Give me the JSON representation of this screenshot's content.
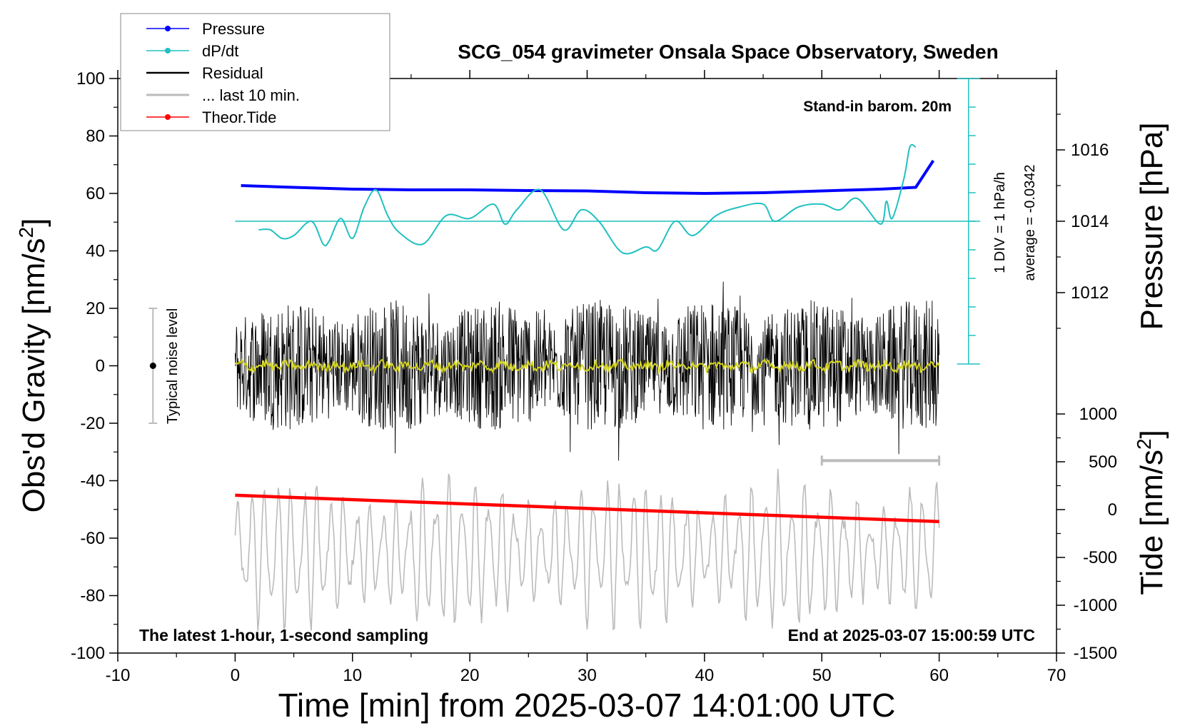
{
  "chart_data": {
    "type": "line",
    "title": "SCG_054 gravimeter Onsala Space Observatory, Sweden",
    "xlabel": "Time [min] from 2025-03-07 14:01:00 UTC",
    "ylabel_left": "Obs'd Gravity [nm/s",
    "ylabel_left_sup": "2",
    "ylabel_left_close": "]",
    "ylabel_right_top": "Pressure [hPa]",
    "ylabel_right_bottom": "Tide [nm/s",
    "ylabel_right_bottom_sup": "2",
    "ylabel_right_bottom_close": "]",
    "xlim": [
      -10,
      70
    ],
    "ylim_left": [
      -100,
      100
    ],
    "ylim_pressure": [
      1010,
      1018
    ],
    "ylim_tide": [
      -1500,
      1000
    ],
    "x_ticks": [
      "-10",
      "0",
      "10",
      "20",
      "30",
      "40",
      "50",
      "60",
      "70"
    ],
    "y_ticks_left": [
      "-100",
      "-80",
      "-60",
      "-40",
      "-20",
      "0",
      "20",
      "40",
      "60",
      "80",
      "100"
    ],
    "pressure_ticks": [
      "1012",
      "1014",
      "1016"
    ],
    "tide_ticks": [
      "-1500",
      "-1000",
      "-500",
      "0",
      "500",
      "1000"
    ],
    "legend": [
      {
        "label": "Pressure",
        "color": "#0000ff",
        "marker": true
      },
      {
        "label": "dP/dt",
        "color": "#20c0c0",
        "marker": true
      },
      {
        "label": "Residual",
        "color": "#000000",
        "marker": false
      },
      {
        "label": "... last 10 min.",
        "color": "#bbbbbb",
        "marker": false
      },
      {
        "label": "Theor.Tide",
        "color": "#ff0000",
        "marker": true
      }
    ],
    "legend_position": "top-left",
    "annotations": {
      "barometer": "Stand-in barom. 20m",
      "div_scale": "1 DIV = 1 hPa/h",
      "average": "average = -0.0342",
      "noise": "Typical noise level",
      "latest": "The latest 1-hour, 1-second sampling",
      "end_time": "End at 2025-03-07 15:00:59 UTC"
    },
    "series": [
      {
        "name": "Pressure",
        "unit": "hPa",
        "color": "#0000ff",
        "x": [
          0.5,
          5,
          10,
          15,
          20,
          25,
          30,
          35,
          40,
          45,
          50,
          55,
          58,
          59.5
        ],
        "values": [
          1015.0,
          1014.95,
          1014.9,
          1014.88,
          1014.88,
          1014.86,
          1014.85,
          1014.8,
          1014.78,
          1014.8,
          1014.85,
          1014.9,
          1014.95,
          1015.7
        ]
      },
      {
        "name": "dP/dt",
        "unit": "hPa/h",
        "color": "#20c0c0",
        "baseline_hPa": 1014,
        "x": [
          2,
          3,
          4,
          5,
          6.5,
          7.5,
          8,
          9,
          10,
          11,
          12,
          13,
          14,
          16,
          18,
          20,
          22,
          23,
          24,
          26,
          28,
          29.5,
          31,
          33,
          35,
          36,
          37.5,
          39,
          41,
          43,
          45,
          46,
          48,
          50,
          51.5,
          53,
          55,
          55.5,
          56,
          57,
          57.5,
          58
        ],
        "values": [
          -0.3,
          -0.3,
          -0.6,
          -0.5,
          0.0,
          -0.8,
          -0.7,
          0.1,
          -0.6,
          0.5,
          1.1,
          0.2,
          -0.4,
          -0.8,
          0.2,
          0.1,
          0.6,
          -0.1,
          0.4,
          1.1,
          -0.3,
          0.4,
          0.0,
          -1.1,
          -0.9,
          -1.0,
          0.0,
          -0.5,
          0.2,
          0.5,
          0.6,
          0.0,
          0.5,
          0.6,
          0.4,
          0.8,
          -0.1,
          0.7,
          0.1,
          1.5,
          2.6,
          2.6
        ]
      },
      {
        "name": "Residual",
        "unit": "nm/s2",
        "color": "#000000",
        "x": [
          0,
          60
        ],
        "typical_range": [
          -30,
          30
        ],
        "peak_range": [
          -40,
          40
        ],
        "mean": 0
      },
      {
        "name": "... last 10 min.",
        "unit": "nm/s2",
        "color": "#bbbbbb",
        "x": [
          0,
          60
        ],
        "center": -65,
        "typical_range": [
          -90,
          -35
        ],
        "peak_range": [
          -95,
          -30
        ]
      },
      {
        "name": "Theor.Tide",
        "unit": "nm/s2",
        "color": "#ff0000",
        "x": [
          0,
          60
        ],
        "values": [
          150,
          -125
        ]
      }
    ],
    "noise_level_bar": {
      "x": -7,
      "y_range": [
        -20,
        20
      ],
      "center": 0
    },
    "ten_minute_bar": {
      "x_range": [
        50,
        60
      ],
      "y": -33
    }
  }
}
